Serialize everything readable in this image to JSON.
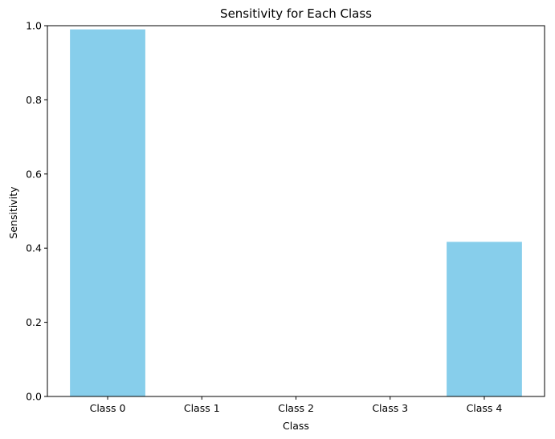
{
  "chart_data": {
    "type": "bar",
    "title": "Sensitivity for Each Class",
    "xlabel": "Class",
    "ylabel": "Sensitivity",
    "categories": [
      "Class 0",
      "Class 1",
      "Class 2",
      "Class 3",
      "Class 4"
    ],
    "values": [
      0.99,
      0.0,
      0.0,
      0.0,
      0.417
    ],
    "ylim": [
      0,
      1.0
    ],
    "yticks": [
      "0.0",
      "0.2",
      "0.4",
      "0.6",
      "0.8",
      "1.0"
    ],
    "bar_color": "#87ceeb",
    "grid": false
  }
}
